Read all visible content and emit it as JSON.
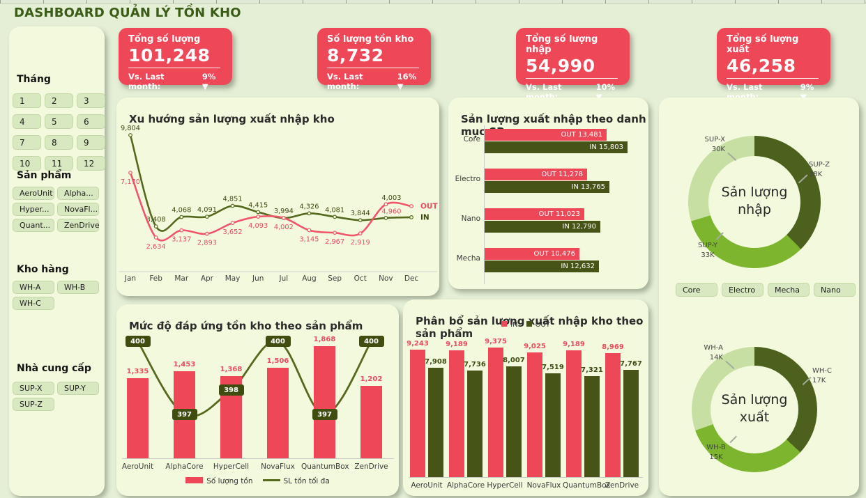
{
  "page": {
    "title": "DASHBOARD QUẢN LÝ TỒN KHO"
  },
  "icons": {
    "down_triangle": "▼"
  },
  "colors": {
    "red": "#ee4757",
    "red_line": "#f0556a",
    "dark_olive": "#475417",
    "olive_line": "#54691e",
    "chip": "#3f4e10",
    "donut_dark": "#4b611d",
    "donut_mid": "#7db52f",
    "donut_light": "#c7dfa2"
  },
  "kpis": [
    {
      "title": "Tổng số lượng",
      "value": "101,248",
      "compare_label": "Vs. Last month:",
      "delta": "9%"
    },
    {
      "title": "Số lượng tồn kho",
      "value": "8,732",
      "compare_label": "Vs. Last month:",
      "delta": "16%"
    },
    {
      "title": "Tổng số lượng nhập",
      "value": "54,990",
      "compare_label": "Vs. Last month:",
      "delta": "10%"
    },
    {
      "title": "Tổng số lượng xuất",
      "value": "46,258",
      "compare_label": "Vs. Last month:",
      "delta": "9%"
    }
  ],
  "sidebar": {
    "month": {
      "label": "Tháng",
      "items": [
        "1",
        "2",
        "3",
        "4",
        "5",
        "6",
        "7",
        "8",
        "9",
        "10",
        "11",
        "12"
      ]
    },
    "product": {
      "label": "Sản phẩm",
      "items": [
        "AeroUnit",
        "Alpha...",
        "Hyper...",
        "NovaFl...",
        "Quant...",
        "ZenDrive"
      ]
    },
    "warehouse": {
      "label": "Kho hàng",
      "items": [
        "WH-A",
        "WH-B",
        "WH-C"
      ]
    },
    "supplier": {
      "label": "Nhà cung cấp",
      "items": [
        "SUP-X",
        "SUP-Y",
        "SUP-Z"
      ]
    }
  },
  "chart_data": [
    {
      "id": "trend",
      "type": "line",
      "title": "Xu hướng sản lượng xuất nhập kho",
      "x": [
        "Jan",
        "Feb",
        "Mar",
        "Apr",
        "May",
        "Jun",
        "Jul",
        "Aug",
        "Sep",
        "Oct",
        "Nov",
        "Dec"
      ],
      "series": [
        {
          "name": "IN",
          "color_key": "olive_line",
          "values": [
            9804,
            3408,
            4068,
            4091,
            4851,
            4415,
            3994,
            4326,
            4081,
            3844,
            4003,
            4050
          ],
          "labels": [
            "9,804",
            "3,408",
            "4,068",
            "4,091",
            "4,851",
            "4,415",
            "3,994",
            "4,326",
            "4,081",
            "3,844",
            "4,003",
            null
          ]
        },
        {
          "name": "OUT",
          "color_key": "red_line",
          "values": [
            7170,
            2634,
            3137,
            2893,
            3652,
            4093,
            4002,
            3145,
            2967,
            2919,
            4960,
            4830
          ],
          "labels": [
            "7,170",
            "2,634",
            "3,137",
            "2,893",
            "3,652",
            "4,093",
            "4,002",
            "3,145",
            "2,967",
            "2,919",
            "4,960",
            null
          ]
        }
      ]
    },
    {
      "id": "category",
      "type": "bar",
      "orientation": "horizontal",
      "title": "Sản lượng xuất nhập theo danh mục SP",
      "categories": [
        "Core",
        "Electro",
        "Nano",
        "Mecha"
      ],
      "series": [
        {
          "name": "OUT",
          "color_key": "red",
          "values": [
            13481,
            11278,
            11023,
            10476
          ]
        },
        {
          "name": "IN",
          "color_key": "dark_olive",
          "values": [
            15803,
            13765,
            12790,
            12632
          ]
        }
      ]
    },
    {
      "id": "fulfillment",
      "type": "bar+line",
      "title": "Mức độ đáp ứng tồn kho theo sản phẩm",
      "categories": [
        "AeroUnit",
        "AlphaCore",
        "HyperCell",
        "NovaFlux",
        "QuantumBox",
        "ZenDrive"
      ],
      "bar_series": {
        "name": "Số lượng tồn",
        "color_key": "red",
        "values": [
          1335,
          1453,
          1368,
          1506,
          1868,
          1202
        ]
      },
      "line_series": {
        "name": "SL tồn tối đa",
        "color_key": "olive_line",
        "values": [
          400,
          397,
          398,
          400,
          397,
          400
        ]
      }
    },
    {
      "id": "distribution",
      "type": "bar",
      "title": "Phân bổ sản lượng xuất nhập kho theo sản phẩm",
      "categories": [
        "AeroUnit",
        "AlphaCore",
        "HyperCell",
        "NovaFlux",
        "QuantumBox",
        "ZenDrive"
      ],
      "series": [
        {
          "name": "IN",
          "color_key": "red",
          "values": [
            9243,
            9189,
            9375,
            9025,
            9189,
            8969
          ]
        },
        {
          "name": "OUT",
          "color_key": "dark_olive",
          "values": [
            7908,
            7736,
            8007,
            7519,
            7321,
            7767
          ]
        }
      ]
    },
    {
      "id": "inbound_donut",
      "type": "pie",
      "center_label": [
        "Sản lượng",
        "nhập"
      ],
      "slices": [
        {
          "label": "SUP-Z",
          "value": 38,
          "display": "38K"
        },
        {
          "label": "SUP-Y",
          "value": 33,
          "display": "33K"
        },
        {
          "label": "SUP-X",
          "value": 30,
          "display": "30K"
        }
      ],
      "legend_buttons": [
        "Core",
        "Electro",
        "Mecha",
        "Nano"
      ]
    },
    {
      "id": "outbound_donut",
      "type": "pie",
      "center_label": [
        "Sản lượng",
        "xuất"
      ],
      "slices": [
        {
          "label": "WH-C",
          "value": 17,
          "display": "17K"
        },
        {
          "label": "WH-B",
          "value": 15,
          "display": "15K"
        },
        {
          "label": "WH-A",
          "value": 14,
          "display": "14K"
        }
      ]
    }
  ]
}
